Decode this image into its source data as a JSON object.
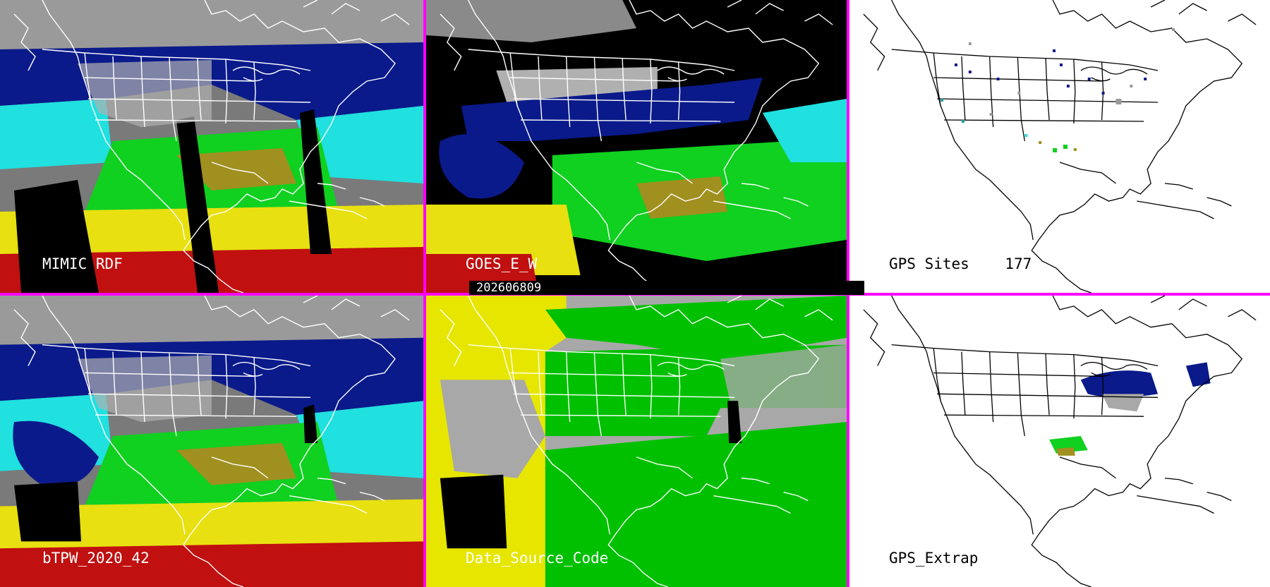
{
  "panels": {
    "mimic": {
      "label": "MIMIC RDF"
    },
    "goes": {
      "label": "GOES_E_W"
    },
    "gps_sites": {
      "label": "GPS Sites",
      "count": "177"
    },
    "btpw": {
      "label": "bTPW_2020_42"
    },
    "source": {
      "label": "Data_Source_Code"
    },
    "gps_extrap": {
      "label": "GPS_Extrap"
    }
  },
  "timestamp": "202606809",
  "colors": {
    "divider": "#ff00ff",
    "gray_high": "#9a9a9a",
    "navy": "#0a1a8a",
    "cyan": "#20e0e0",
    "green": "#10d020",
    "olive": "#a09020",
    "yellow": "#e8e010",
    "red": "#c01010",
    "source_gray": "#a8a8a8",
    "source_yellow": "#e6e600",
    "source_green": "#00c000"
  }
}
